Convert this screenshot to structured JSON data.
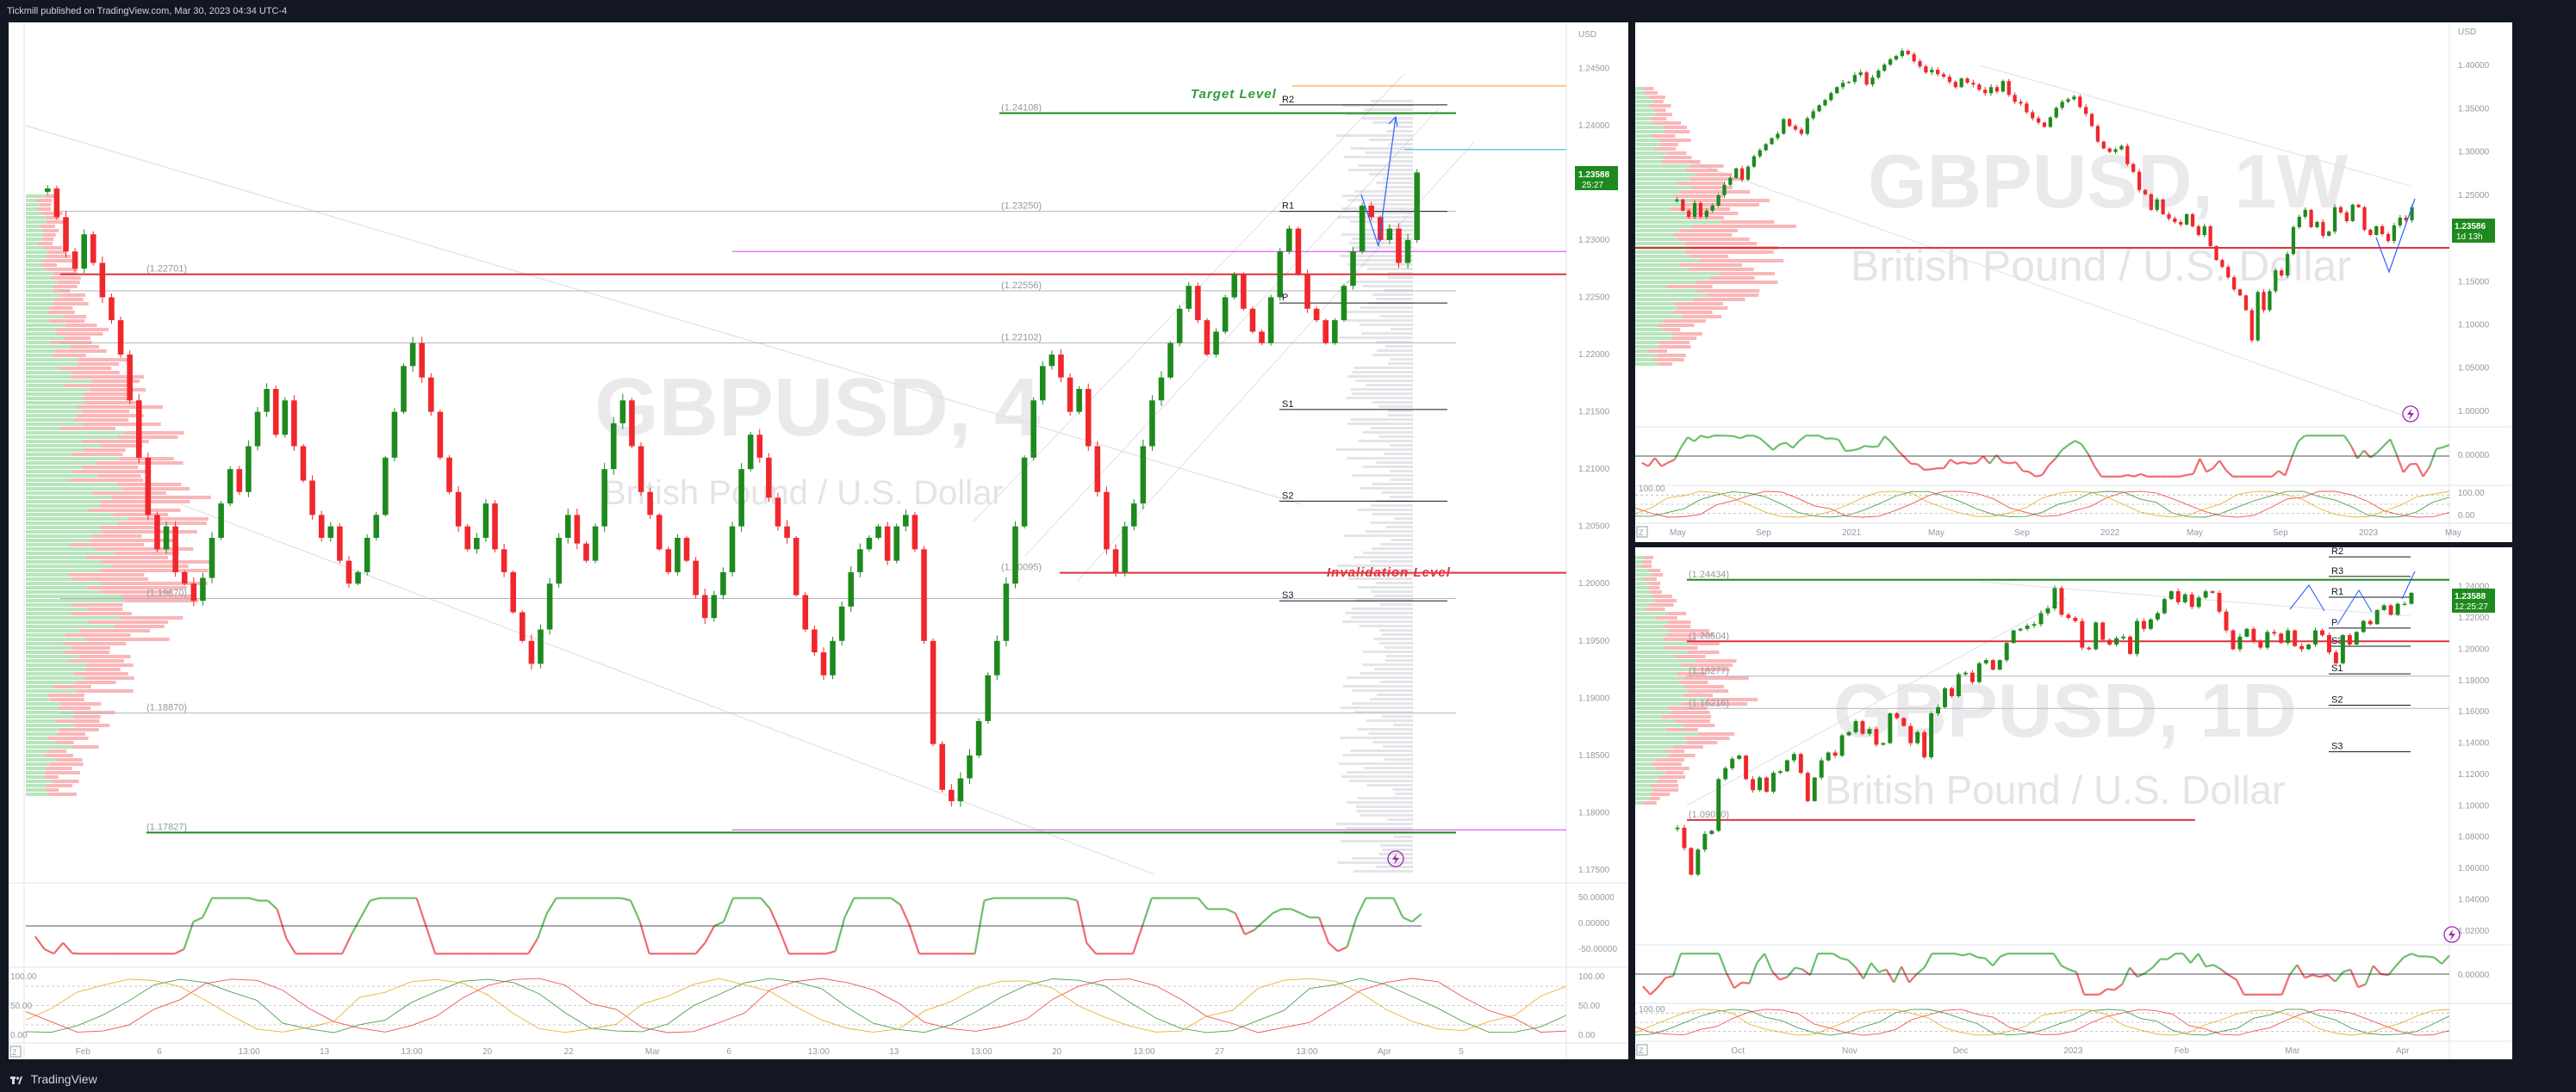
{
  "header": {
    "text": "Tickmill published on TradingView.com, Mar 30, 2023 04:34 UTC-4"
  },
  "footer": {
    "brand": "TradingView"
  },
  "colors": {
    "up": "#1e8a1e",
    "down": "#f0272c",
    "green_level": "#1e8a1e",
    "red_level": "#e0323c",
    "background": "#ffffff",
    "chrome": "#131722"
  },
  "chart_data": [
    {
      "id": "main",
      "type": "candlestick",
      "watermark": {
        "symbol": "GBPUSD, 4",
        "description": "British Pound / U.S. Dollar"
      },
      "currency": "USD",
      "last_price": "1.23588",
      "countdown": "25:27",
      "y_ticks": [
        "1.24500",
        "1.24000",
        "1.23500",
        "1.23000",
        "1.22500",
        "1.22000",
        "1.21500",
        "1.21000",
        "1.20500",
        "1.20000",
        "1.19500",
        "1.19000",
        "1.18500",
        "1.18000",
        "1.17500"
      ],
      "ylim": [
        1.175,
        1.2475
      ],
      "x_ticks": [
        "Feb",
        "6",
        "13:00",
        "13",
        "13:00",
        "20",
        "22",
        "Mar",
        "6",
        "13:00",
        "13",
        "13:00",
        "20",
        "13:00",
        "27",
        "13:00",
        "Apr",
        "5"
      ],
      "levels": [
        {
          "label": "(1.24108)",
          "value": 1.24108,
          "color": "#1e8a1e"
        },
        {
          "label": "(1.23250)",
          "value": 1.2325,
          "color": "#b2b5be"
        },
        {
          "label": "(1.22701)",
          "value": 1.22701,
          "color": "#e0323c"
        },
        {
          "label": "(1.22556)",
          "value": 1.22556,
          "color": "#b2b5be"
        },
        {
          "label": "(1.22102)",
          "value": 1.22102,
          "color": "#b2b5be"
        },
        {
          "label": "(1.20095)",
          "value": 1.20095,
          "color": "#e0323c"
        },
        {
          "label": "(1.19870)",
          "value": 1.1987,
          "color": "#b2b5be"
        },
        {
          "label": "(1.18870)",
          "value": 1.1887,
          "color": "#b2b5be"
        },
        {
          "label": "(1.17827)",
          "value": 1.17827,
          "color": "#1e8a1e"
        }
      ],
      "pivots": [
        {
          "label": "R2",
          "value": 1.2418
        },
        {
          "label": "R1",
          "value": 1.2325
        },
        {
          "label": "P",
          "value": 1.2245
        },
        {
          "label": "S1",
          "value": 1.2152
        },
        {
          "label": "S2",
          "value": 1.2072
        },
        {
          "label": "S3",
          "value": 1.1985
        }
      ],
      "annotations": [
        {
          "text": "Target Level",
          "value": 1.2418
        },
        {
          "text": "Invalidation Level",
          "value": 1.201
        }
      ],
      "oscillator1_ticks": [
        "50.00000",
        "0.00000",
        "-50.00000"
      ],
      "oscillator2_ticks": [
        "100.00",
        "50.00",
        "0.00"
      ],
      "closes": [
        1.2345,
        1.232,
        1.229,
        1.2275,
        1.2305,
        1.228,
        1.225,
        1.223,
        1.22,
        1.216,
        1.211,
        1.206,
        1.203,
        1.205,
        1.201,
        1.2,
        1.1985,
        1.2005,
        1.204,
        1.207,
        1.21,
        1.208,
        1.212,
        1.215,
        1.217,
        1.213,
        1.216,
        1.212,
        1.209,
        1.206,
        1.204,
        1.205,
        1.202,
        1.2,
        1.201,
        1.204,
        1.206,
        1.211,
        1.215,
        1.219,
        1.221,
        1.218,
        1.215,
        1.211,
        1.208,
        1.205,
        1.203,
        1.204,
        1.207,
        1.203,
        1.201,
        1.1975,
        1.195,
        1.193,
        1.196,
        1.2,
        1.204,
        1.206,
        1.2035,
        1.202,
        1.205,
        1.21,
        1.214,
        1.216,
        1.212,
        1.208,
        1.206,
        1.203,
        1.201,
        1.204,
        1.202,
        1.199,
        1.197,
        1.199,
        1.201,
        1.205,
        1.21,
        1.213,
        1.211,
        1.2075,
        1.205,
        1.204,
        1.199,
        1.196,
        1.194,
        1.192,
        1.195,
        1.198,
        1.201,
        1.203,
        1.204,
        1.205,
        1.202,
        1.205,
        1.206,
        1.203,
        1.195,
        1.186,
        1.182,
        1.181,
        1.183,
        1.185,
        1.188,
        1.192,
        1.195,
        1.2,
        1.205,
        1.211,
        1.216,
        1.219,
        1.22,
        1.218,
        1.215,
        1.217,
        1.212,
        1.208,
        1.203,
        1.201,
        1.205,
        1.207,
        1.212,
        1.216,
        1.218,
        1.221,
        1.224,
        1.226,
        1.223,
        1.22,
        1.222,
        1.225,
        1.227,
        1.224,
        1.222,
        1.221,
        1.225,
        1.229,
        1.231,
        1.227,
        1.224,
        1.223,
        1.221,
        1.223,
        1.226,
        1.229,
        1.233,
        1.232,
        1.23,
        1.231,
        1.228,
        1.23,
        1.2359
      ]
    },
    {
      "id": "weekly",
      "type": "candlestick",
      "watermark": {
        "symbol": "GBPUSD, 1W",
        "description": "British Pound / U.S. Dollar"
      },
      "currency": "USD",
      "last_price": "1.23586",
      "countdown": "1d 13h",
      "y_ticks": [
        "1.40000",
        "1.35000",
        "1.30000",
        "1.25000",
        "1.20000",
        "1.15000",
        "1.10000",
        "1.05000",
        "1.00000"
      ],
      "ylim": [
        0.99,
        1.43
      ],
      "x_ticks": [
        "May",
        "Sep",
        "2021",
        "May",
        "Sep",
        "2022",
        "May",
        "Sep",
        "2023",
        "May"
      ],
      "oscillator1_ticks": [
        "0.00000"
      ],
      "oscillator2_ticks": [
        "100.00",
        "0.00"
      ],
      "closes": [
        1.245,
        1.232,
        1.225,
        1.241,
        1.225,
        1.232,
        1.238,
        1.25,
        1.262,
        1.27,
        1.281,
        1.268,
        1.283,
        1.295,
        1.302,
        1.309,
        1.316,
        1.321,
        1.338,
        1.33,
        1.326,
        1.321,
        1.339,
        1.347,
        1.354,
        1.36,
        1.368,
        1.375,
        1.38,
        1.381,
        1.389,
        1.392,
        1.378,
        1.386,
        1.394,
        1.401,
        1.407,
        1.411,
        1.417,
        1.413,
        1.405,
        1.399,
        1.392,
        1.395,
        1.39,
        1.387,
        1.381,
        1.375,
        1.385,
        1.38,
        1.378,
        1.372,
        1.368,
        1.375,
        1.37,
        1.382,
        1.366,
        1.358,
        1.356,
        1.346,
        1.339,
        1.334,
        1.329,
        1.34,
        1.351,
        1.358,
        1.361,
        1.364,
        1.352,
        1.344,
        1.33,
        1.312,
        1.304,
        1.3,
        1.303,
        1.307,
        1.286,
        1.277,
        1.256,
        1.251,
        1.233,
        1.245,
        1.228,
        1.223,
        1.219,
        1.216,
        1.228,
        1.214,
        1.204,
        1.214,
        1.191,
        1.175,
        1.167,
        1.155,
        1.141,
        1.134,
        1.117,
        1.082,
        1.138,
        1.117,
        1.139,
        1.163,
        1.157,
        1.182,
        1.213,
        1.225,
        1.233,
        1.213,
        1.219,
        1.203,
        1.208,
        1.236,
        1.23,
        1.22,
        1.239,
        1.236,
        1.21,
        1.204,
        1.214,
        1.205,
        1.197,
        1.215,
        1.224,
        1.221,
        1.236
      ]
    },
    {
      "id": "daily",
      "type": "candlestick",
      "watermark": {
        "symbol": "GBPUSD, 1D",
        "description": "British Pound / U.S. Dollar"
      },
      "currency": "USD",
      "last_price": "1.23588",
      "countdown": "12:25:27",
      "y_ticks": [
        "1.24000",
        "1.22000",
        "1.20000",
        "1.18000",
        "1.16000",
        "1.14000",
        "1.12000",
        "1.10000",
        "1.08000",
        "1.06000",
        "1.04000",
        "1.02000"
      ],
      "ylim": [
        1.015,
        1.253
      ],
      "x_ticks": [
        "Oct",
        "Nov",
        "Dec",
        "2023",
        "Feb",
        "Mar",
        "Apr"
      ],
      "levels": [
        {
          "label": "(1.24434)",
          "value": 1.24434,
          "color": "#1e8a1e"
        },
        {
          "label": "(1.20504)",
          "value": 1.20504,
          "color": "#e0323c"
        },
        {
          "label": "(1.18277)",
          "value": 1.18277,
          "color": "#b2b5be"
        },
        {
          "label": "(1.16216)",
          "value": 1.16216,
          "color": "#b2b5be"
        },
        {
          "label": "(1.09090)",
          "value": 1.0909,
          "color": "#e0323c"
        }
      ],
      "pivots": [
        {
          "label": "R2",
          "value": 1.259
        },
        {
          "label": "R3",
          "value": 1.2465
        },
        {
          "label": "R1",
          "value": 1.2332
        },
        {
          "label": "P",
          "value": 1.2135
        },
        {
          "label": "S3",
          "value": 1.2019
        },
        {
          "label": "S1",
          "value": 1.1842
        },
        {
          "label": "S2",
          "value": 1.1642
        },
        {
          "label": "S3",
          "value": 1.1345
        }
      ],
      "oscillator1_ticks": [
        "0.00000"
      ],
      "oscillator2_ticks": [
        "100.00"
      ],
      "closes": [
        1.086,
        1.073,
        1.056,
        1.072,
        1.082,
        1.084,
        1.117,
        1.124,
        1.13,
        1.132,
        1.117,
        1.11,
        1.118,
        1.109,
        1.121,
        1.122,
        1.129,
        1.133,
        1.121,
        1.103,
        1.118,
        1.129,
        1.134,
        1.132,
        1.145,
        1.147,
        1.154,
        1.146,
        1.149,
        1.139,
        1.14,
        1.159,
        1.156,
        1.151,
        1.14,
        1.147,
        1.131,
        1.159,
        1.163,
        1.175,
        1.17,
        1.184,
        1.185,
        1.179,
        1.191,
        1.193,
        1.187,
        1.193,
        1.204,
        1.212,
        1.213,
        1.215,
        1.216,
        1.223,
        1.226,
        1.239,
        1.222,
        1.22,
        1.218,
        1.201,
        1.2,
        1.217,
        1.206,
        1.203,
        1.207,
        1.208,
        1.197,
        1.218,
        1.213,
        1.219,
        1.223,
        1.232,
        1.237,
        1.23,
        1.235,
        1.227,
        1.233,
        1.237,
        1.236,
        1.224,
        1.212,
        1.2,
        1.208,
        1.213,
        1.205,
        1.201,
        1.211,
        1.21,
        1.204,
        1.212,
        1.202,
        1.2,
        1.203,
        1.212,
        1.209,
        1.198,
        1.191,
        1.209,
        1.203,
        1.211,
        1.218,
        1.216,
        1.225,
        1.228,
        1.222,
        1.229,
        1.229,
        1.236
      ]
    }
  ]
}
